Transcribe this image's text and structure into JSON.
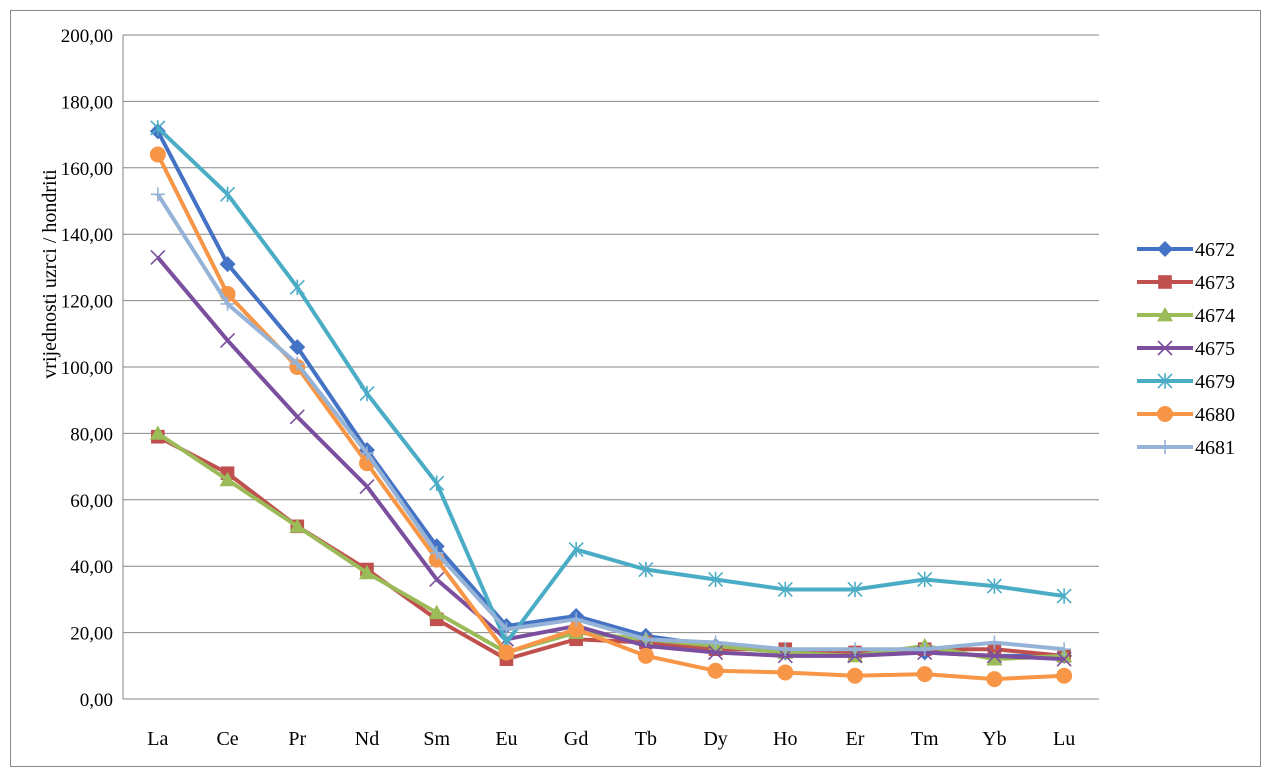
{
  "chart_data": {
    "type": "line",
    "title": "",
    "xlabel": "",
    "ylabel": "vrijednosti uzrci / hondriti",
    "ylim": [
      0,
      200
    ],
    "ytick_step": 20,
    "ytick_labels": [
      "0,00",
      "20,00",
      "40,00",
      "60,00",
      "80,00",
      "100,00",
      "120,00",
      "140,00",
      "160,00",
      "180,00",
      "200,00"
    ],
    "grid": "horizontal",
    "legend_position": "right",
    "categories": [
      "La",
      "Ce",
      "Pr",
      "Nd",
      "Sm",
      "Eu",
      "Gd",
      "Tb",
      "Dy",
      "Ho",
      "Er",
      "Tm",
      "Yb",
      "Lu"
    ],
    "series": [
      {
        "name": "4672",
        "color": "#4472C4",
        "marker": "diamond",
        "values": [
          171,
          131,
          106,
          75,
          46,
          22,
          25,
          19,
          16,
          14,
          14,
          14,
          13,
          13
        ]
      },
      {
        "name": "4673",
        "color": "#C0504D",
        "marker": "square",
        "values": [
          79,
          68,
          52,
          39,
          24,
          12,
          18,
          17,
          15,
          15,
          14,
          15,
          15,
          13
        ]
      },
      {
        "name": "4674",
        "color": "#9BBB59",
        "marker": "triangle",
        "values": [
          80,
          66,
          52,
          38,
          26,
          14,
          20,
          18,
          16,
          14,
          13,
          16,
          12,
          13
        ]
      },
      {
        "name": "4675",
        "color": "#7B4F9E",
        "marker": "x",
        "values": [
          133,
          108,
          85,
          64,
          36,
          18,
          22,
          16,
          14,
          13,
          13,
          14,
          13,
          12
        ]
      },
      {
        "name": "4679",
        "color": "#4BACC6",
        "marker": "star",
        "values": [
          172,
          152,
          124,
          92,
          65,
          17,
          45,
          39,
          36,
          33,
          33,
          36,
          34,
          31
        ]
      },
      {
        "name": "4680",
        "color": "#F79646",
        "marker": "circle",
        "values": [
          164,
          122,
          100,
          71,
          42,
          14,
          21,
          13,
          8.5,
          8,
          7,
          7.5,
          6,
          7
        ]
      },
      {
        "name": "4681",
        "color": "#95B3D7",
        "marker": "plus",
        "values": [
          152,
          119,
          101,
          74,
          44,
          21,
          24,
          18,
          17,
          15,
          15,
          15,
          17,
          15
        ]
      }
    ]
  }
}
